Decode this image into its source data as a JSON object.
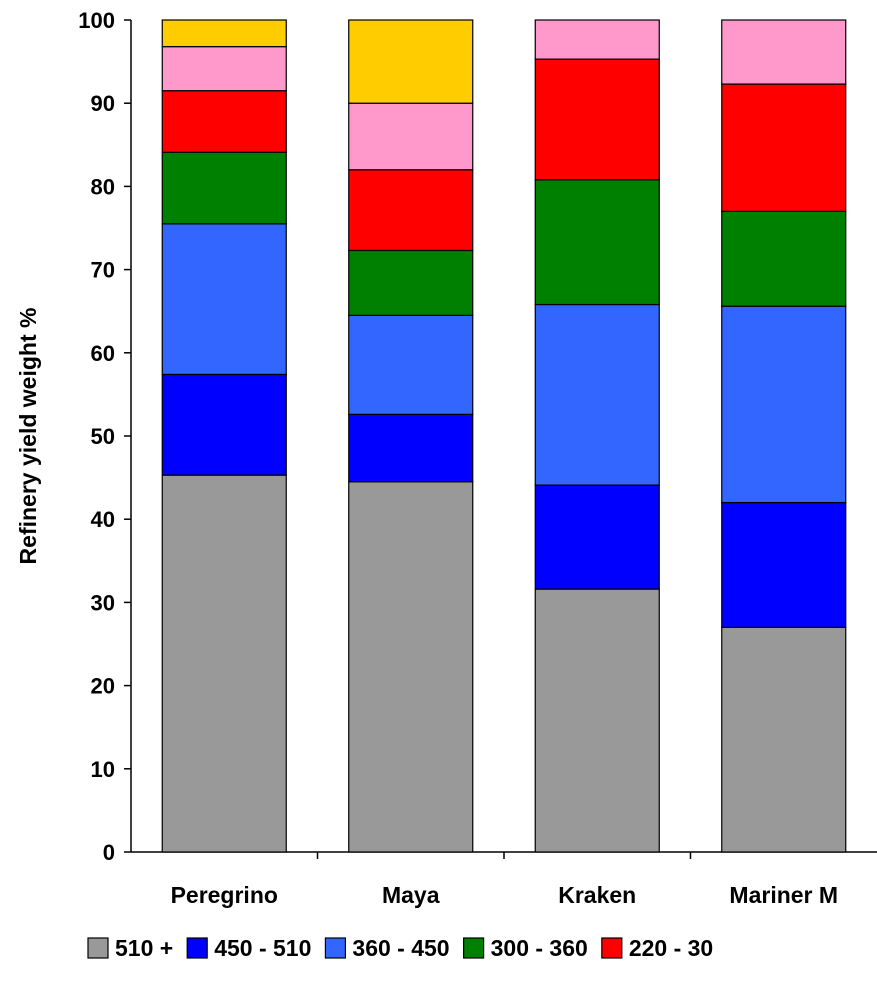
{
  "chart_data": {
    "type": "bar",
    "stacked": true,
    "title": "",
    "xlabel": "",
    "ylabel": "Refinery yield weight %",
    "ylim": [
      0,
      100
    ],
    "yticks": [
      0,
      10,
      20,
      30,
      40,
      50,
      60,
      70,
      80,
      90,
      100
    ],
    "grid": false,
    "legend_position": "bottom",
    "categories": [
      "Peregrino",
      "Maya",
      "Kraken",
      "Mariner M"
    ],
    "series": [
      {
        "name": "510 +",
        "color": "#999999",
        "values": [
          45.3,
          44.5,
          31.6,
          27.0
        ]
      },
      {
        "name": "450 - 510",
        "color": "#0000FF",
        "values": [
          12.1,
          8.1,
          12.5,
          15.0
        ]
      },
      {
        "name": "360 - 450",
        "color": "#3366FF",
        "values": [
          18.1,
          11.9,
          21.7,
          23.6
        ]
      },
      {
        "name": "300 - 360",
        "color": "#008000",
        "values": [
          8.6,
          7.8,
          15.0,
          11.4
        ]
      },
      {
        "name": "220 - 30",
        "color": "#FF0000",
        "values": [
          7.4,
          9.7,
          14.5,
          15.3
        ]
      },
      {
        "name": "",
        "color": "#FF99CC",
        "values": [
          5.3,
          8.0,
          4.7,
          7.7
        ]
      },
      {
        "name": "",
        "color": "#FFCC00",
        "values": [
          3.2,
          10.0,
          0,
          0
        ]
      }
    ]
  }
}
